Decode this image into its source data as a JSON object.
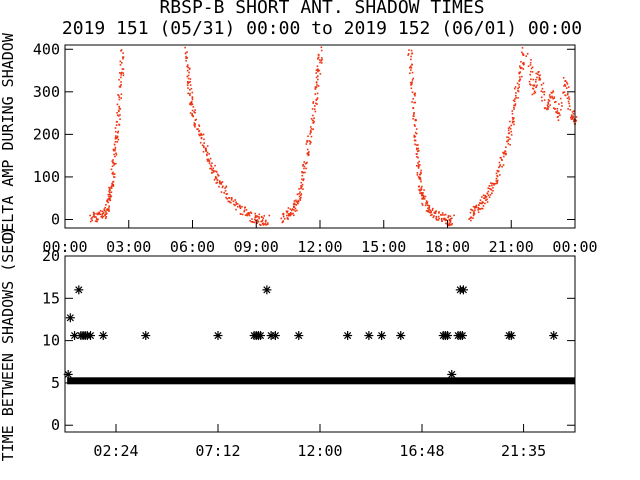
{
  "title": "RBSP-B SHORT ANT. SHADOW TIMES",
  "subtitle": "2019 151 (05/31) 00:00 to 2019 152 (06/01) 00:00",
  "chart_data": [
    {
      "type": "scatter",
      "ylabel": "DELTA AMP DURING SHADOW",
      "xlim": [
        0,
        24
      ],
      "ylim": [
        -20,
        410
      ],
      "yticks": [
        0,
        100,
        200,
        300,
        400
      ],
      "xtick_labels": [
        "00:00",
        "03:00",
        "06:00",
        "09:00",
        "12:00",
        "15:00",
        "18:00",
        "21:00",
        "00:00"
      ],
      "marker_color": "#ee3311",
      "series": [
        {
          "values": [
            [
              1.2,
              5
            ],
            [
              1.5,
              10
            ],
            [
              1.8,
              15
            ],
            [
              2.0,
              30
            ],
            [
              2.1,
              60
            ],
            [
              2.2,
              100
            ],
            [
              2.3,
              150
            ],
            [
              2.4,
              200
            ],
            [
              2.5,
              260
            ],
            [
              2.6,
              330
            ],
            [
              2.7,
              400
            ]
          ]
        },
        {
          "values": [
            [
              5.7,
              400
            ],
            [
              5.8,
              330
            ],
            [
              5.9,
              280
            ],
            [
              6.1,
              230
            ],
            [
              6.4,
              190
            ],
            [
              6.7,
              150
            ],
            [
              6.9,
              120
            ],
            [
              7.2,
              90
            ],
            [
              7.6,
              60
            ],
            [
              8.0,
              35
            ],
            [
              8.5,
              15
            ],
            [
              8.9,
              5
            ],
            [
              9.2,
              -2
            ],
            [
              9.5,
              0
            ]
          ]
        },
        {
          "values": [
            [
              10.2,
              5
            ],
            [
              10.5,
              15
            ],
            [
              10.8,
              30
            ],
            [
              11.0,
              60
            ],
            [
              11.2,
              110
            ],
            [
              11.4,
              170
            ],
            [
              11.6,
              230
            ],
            [
              11.8,
              300
            ],
            [
              11.9,
              350
            ],
            [
              12.0,
              400
            ]
          ]
        },
        {
          "values": [
            [
              16.2,
              400
            ],
            [
              16.3,
              330
            ],
            [
              16.4,
              250
            ],
            [
              16.5,
              180
            ],
            [
              16.6,
              120
            ],
            [
              16.7,
              80
            ],
            [
              16.8,
              50
            ],
            [
              17.0,
              30
            ],
            [
              17.3,
              15
            ],
            [
              17.7,
              5
            ],
            [
              18.0,
              -2
            ],
            [
              18.2,
              0
            ]
          ]
        },
        {
          "values": [
            [
              19.0,
              10
            ],
            [
              19.3,
              25
            ],
            [
              19.6,
              40
            ],
            [
              19.9,
              60
            ],
            [
              20.2,
              90
            ],
            [
              20.5,
              130
            ],
            [
              20.8,
              180
            ],
            [
              21.0,
              230
            ],
            [
              21.2,
              300
            ],
            [
              21.4,
              350
            ],
            [
              21.6,
              400
            ]
          ]
        },
        {
          "values": [
            [
              21.8,
              380
            ],
            [
              22.0,
              300
            ],
            [
              22.3,
              350
            ],
            [
              22.6,
              260
            ],
            [
              22.9,
              300
            ],
            [
              23.2,
              240
            ],
            [
              23.5,
              330
            ],
            [
              23.8,
              250
            ],
            [
              24.0,
              230
            ]
          ]
        }
      ]
    },
    {
      "type": "scatter",
      "ylabel": "TIME BETWEEN SHADOWS (SEC)",
      "xlim": [
        0,
        24
      ],
      "ylim": [
        -0.8,
        20
      ],
      "yticks": [
        0,
        5,
        10,
        15,
        20
      ],
      "xtick_values": [
        2.4,
        7.2,
        12.0,
        16.8,
        21.58
      ],
      "xtick_labels": [
        "02:24",
        "07:12",
        "12:00",
        "16:48",
        "21:35"
      ],
      "marker": "asterisk",
      "marker_color": "#000000",
      "baseline": {
        "value": 5.25,
        "x_start": 0.1,
        "x_end": 24.0
      },
      "points": [
        [
          0.15,
          6.0
        ],
        [
          0.25,
          12.7
        ],
        [
          0.45,
          10.6
        ],
        [
          0.65,
          16.0
        ],
        [
          0.75,
          10.6
        ],
        [
          0.85,
          10.6
        ],
        [
          0.95,
          10.6
        ],
        [
          1.05,
          10.6
        ],
        [
          1.2,
          10.6
        ],
        [
          1.8,
          10.6
        ],
        [
          3.8,
          10.6
        ],
        [
          7.2,
          10.6
        ],
        [
          8.9,
          10.6
        ],
        [
          9.0,
          10.6
        ],
        [
          9.1,
          10.6
        ],
        [
          9.2,
          10.6
        ],
        [
          9.5,
          16.0
        ],
        [
          9.7,
          10.6
        ],
        [
          9.9,
          10.6
        ],
        [
          11.0,
          10.6
        ],
        [
          13.3,
          10.6
        ],
        [
          14.3,
          10.6
        ],
        [
          14.9,
          10.6
        ],
        [
          15.8,
          10.6
        ],
        [
          17.8,
          10.6
        ],
        [
          17.9,
          10.6
        ],
        [
          18.0,
          10.6
        ],
        [
          18.2,
          6.0
        ],
        [
          18.5,
          10.6
        ],
        [
          18.6,
          10.6
        ],
        [
          18.7,
          10.6
        ],
        [
          18.6,
          16.0
        ],
        [
          18.75,
          16.0
        ],
        [
          20.9,
          10.6
        ],
        [
          21.0,
          10.6
        ],
        [
          23.0,
          10.6
        ]
      ]
    }
  ]
}
